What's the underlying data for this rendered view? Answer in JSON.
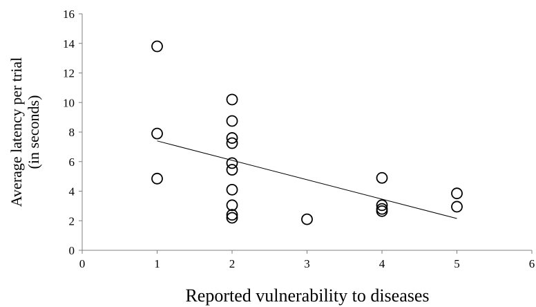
{
  "chart_data": {
    "type": "scatter",
    "title": "",
    "xlabel": "Reported vulnerability  to diseases",
    "ylabel_lines": [
      "Average latency per trial",
      "(in seconds)"
    ],
    "xlim": [
      0,
      6
    ],
    "ylim": [
      0,
      16
    ],
    "xticks": [
      0,
      1,
      2,
      3,
      4,
      5,
      6
    ],
    "yticks": [
      0,
      2,
      4,
      6,
      8,
      10,
      12,
      14,
      16
    ],
    "grid": false,
    "legend": "none",
    "points": [
      {
        "x": 1,
        "y": 13.8
      },
      {
        "x": 1,
        "y": 7.9
      },
      {
        "x": 1,
        "y": 4.85
      },
      {
        "x": 2,
        "y": 10.2
      },
      {
        "x": 2,
        "y": 8.75
      },
      {
        "x": 2,
        "y": 7.6
      },
      {
        "x": 2,
        "y": 7.25
      },
      {
        "x": 2,
        "y": 5.9
      },
      {
        "x": 2,
        "y": 5.45
      },
      {
        "x": 2,
        "y": 4.1
      },
      {
        "x": 2,
        "y": 3.05
      },
      {
        "x": 2,
        "y": 2.4
      },
      {
        "x": 2,
        "y": 2.2
      },
      {
        "x": 3,
        "y": 2.1
      },
      {
        "x": 4,
        "y": 4.9
      },
      {
        "x": 4,
        "y": 3.05
      },
      {
        "x": 4,
        "y": 2.8
      },
      {
        "x": 4,
        "y": 2.65
      },
      {
        "x": 5,
        "y": 3.85
      },
      {
        "x": 5,
        "y": 2.95
      }
    ],
    "trendline": {
      "x": [
        1,
        5
      ],
      "y": [
        7.4,
        2.15
      ]
    },
    "colors": {
      "marker_stroke": "#000000",
      "axis": "#7f7f7f",
      "trendline": "#000000"
    }
  }
}
